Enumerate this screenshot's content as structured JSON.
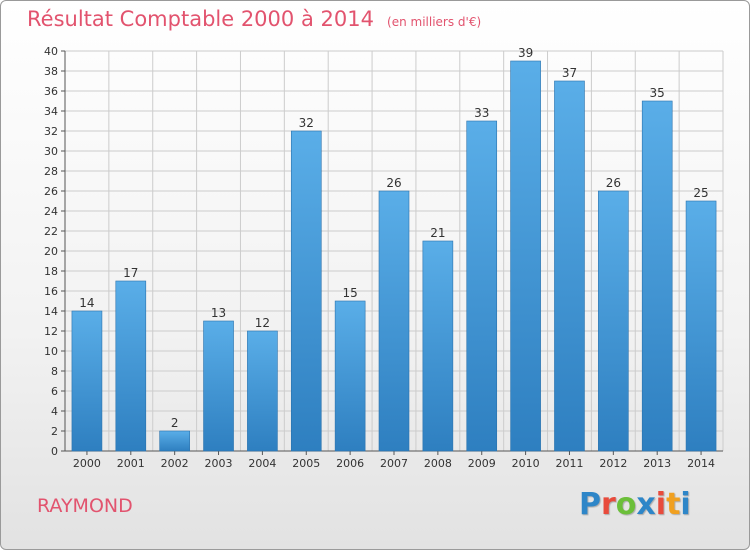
{
  "header": {
    "title": "Résultat Comptable 2000 à 2014",
    "subtitle": "(en milliers d'€)"
  },
  "footer": {
    "commune": "RAYMOND",
    "logo_text": "Proxiti",
    "logo_colors": [
      "#2e86c8",
      "#e84b3c",
      "#6cbf3a",
      "#2e86c8",
      "#e84b3c",
      "#f0a020",
      "#2e86c8"
    ]
  },
  "chart_data": {
    "type": "bar",
    "categories": [
      "2000",
      "2001",
      "2002",
      "2003",
      "2004",
      "2005",
      "2006",
      "2007",
      "2008",
      "2009",
      "2010",
      "2011",
      "2012",
      "2013",
      "2014"
    ],
    "values": [
      14,
      17,
      2,
      13,
      12,
      32,
      15,
      26,
      21,
      33,
      39,
      37,
      26,
      35,
      25
    ],
    "title": "Résultat Comptable 2000 à 2014",
    "subtitle": "(en milliers d'€)",
    "xlabel": "",
    "ylabel": "",
    "ylim": [
      0,
      40
    ],
    "ytick_step": 2,
    "grid": true,
    "legend": "none",
    "colors": {
      "bar_light": "#5aaee8",
      "bar_dark": "#2e7fc0",
      "grid": "#cccccc"
    }
  }
}
